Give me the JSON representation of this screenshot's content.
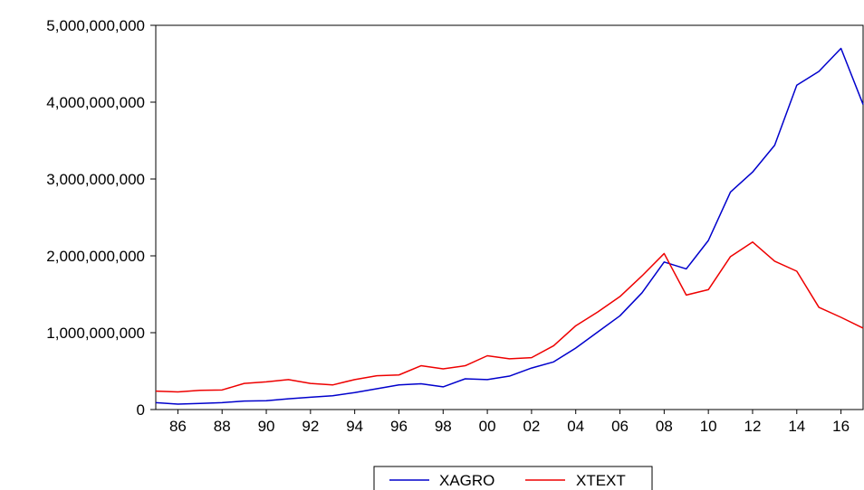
{
  "chart_data": {
    "type": "line",
    "x": [
      1985,
      1986,
      1987,
      1988,
      1989,
      1990,
      1991,
      1992,
      1993,
      1994,
      1995,
      1996,
      1997,
      1998,
      1999,
      2000,
      2001,
      2002,
      2003,
      2004,
      2005,
      2006,
      2007,
      2008,
      2009,
      2010,
      2011,
      2012,
      2013,
      2014,
      2015,
      2016,
      2017
    ],
    "xtick_labels": [
      "86",
      "88",
      "90",
      "92",
      "94",
      "96",
      "98",
      "00",
      "02",
      "04",
      "06",
      "08",
      "10",
      "12",
      "14",
      "16"
    ],
    "xtick_values": [
      1986,
      1988,
      1990,
      1992,
      1994,
      1996,
      1998,
      2000,
      2002,
      2004,
      2006,
      2008,
      2010,
      2012,
      2014,
      2016
    ],
    "yticks": [
      0,
      1000000000,
      2000000000,
      3000000000,
      4000000000,
      5000000000
    ],
    "ytick_labels": [
      "0",
      "1,000,000,000",
      "2,000,000,000",
      "3,000,000,000",
      "4,000,000,000",
      "5,000,000,000"
    ],
    "ylim": [
      0,
      5000000000
    ],
    "xlim": [
      1985,
      2017
    ],
    "series": [
      {
        "name": "XAGRO",
        "color": "#0000cc",
        "values": [
          90000000,
          70000000,
          80000000,
          90000000,
          110000000,
          115000000,
          140000000,
          160000000,
          180000000,
          220000000,
          270000000,
          320000000,
          335000000,
          295000000,
          400000000,
          390000000,
          435000000,
          540000000,
          620000000,
          800000000,
          1010000000,
          1220000000,
          1520000000,
          1920000000,
          1830000000,
          2200000000,
          2830000000,
          3090000000,
          3440000000,
          4220000000,
          4400000000,
          4700000000,
          3970000000
        ]
      },
      {
        "name": "XTEXT",
        "color": "#ee0000",
        "values": [
          240000000,
          230000000,
          250000000,
          255000000,
          340000000,
          360000000,
          390000000,
          340000000,
          320000000,
          390000000,
          440000000,
          450000000,
          570000000,
          530000000,
          570000000,
          700000000,
          660000000,
          675000000,
          830000000,
          1090000000,
          1270000000,
          1470000000,
          1740000000,
          2030000000,
          1490000000,
          1560000000,
          1990000000,
          2180000000,
          1930000000,
          1800000000,
          1330000000,
          1200000000,
          1060000000
        ]
      }
    ],
    "legend_position": "bottom-center",
    "grid": false
  }
}
